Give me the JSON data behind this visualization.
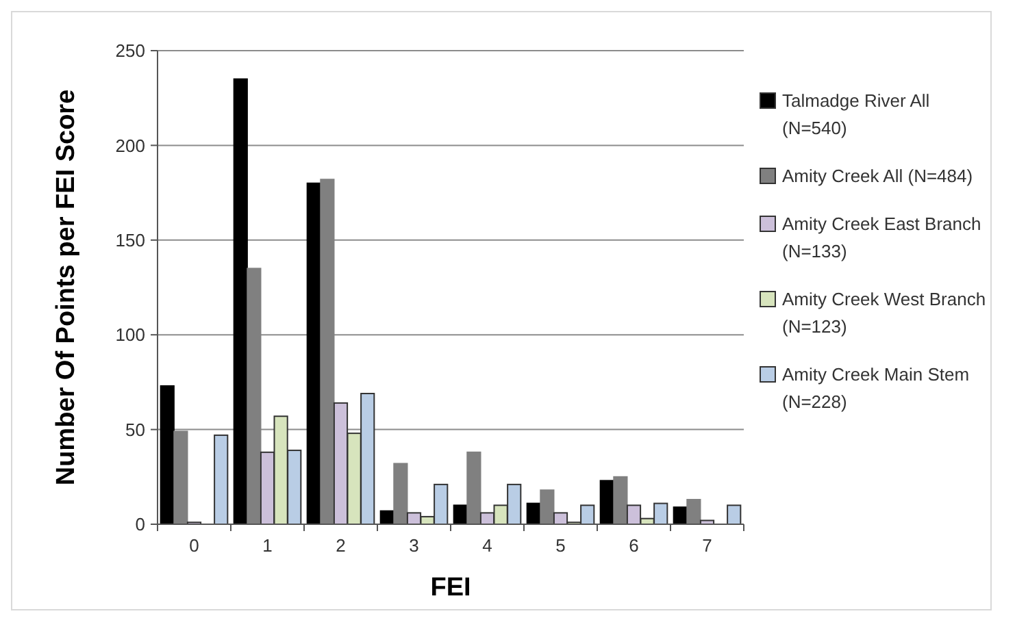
{
  "chart_data": {
    "type": "bar",
    "xlabel": "FEI",
    "ylabel": "Number Of Points per FEI Score",
    "categories": [
      "0",
      "1",
      "2",
      "3",
      "4",
      "5",
      "6",
      "7"
    ],
    "series": [
      {
        "name": "Talmadge River All (N=540)",
        "color": "#000000",
        "values": [
          73,
          235,
          180,
          7,
          10,
          11,
          23,
          9
        ]
      },
      {
        "name": "Amity Creek All (N=484)",
        "color": "#808080",
        "values": [
          49,
          135,
          182,
          32,
          38,
          18,
          25,
          13
        ]
      },
      {
        "name": "Amity Creek East Branch (N=133)",
        "color": "#ccc0da",
        "values": [
          1,
          38,
          64,
          6,
          6,
          6,
          10,
          2
        ]
      },
      {
        "name": "Amity Creek West Branch (N=123)",
        "color": "#d7e4bd",
        "values": [
          0,
          57,
          48,
          4,
          10,
          1,
          3,
          0
        ]
      },
      {
        "name": "Amity Creek Main Stem (N=228)",
        "color": "#b9cde5",
        "values": [
          47,
          39,
          69,
          21,
          21,
          10,
          11,
          10
        ]
      }
    ],
    "ylim": [
      0,
      250
    ],
    "yticks": [
      0,
      50,
      100,
      150,
      200,
      250
    ],
    "grid": "y",
    "legend": "right"
  }
}
